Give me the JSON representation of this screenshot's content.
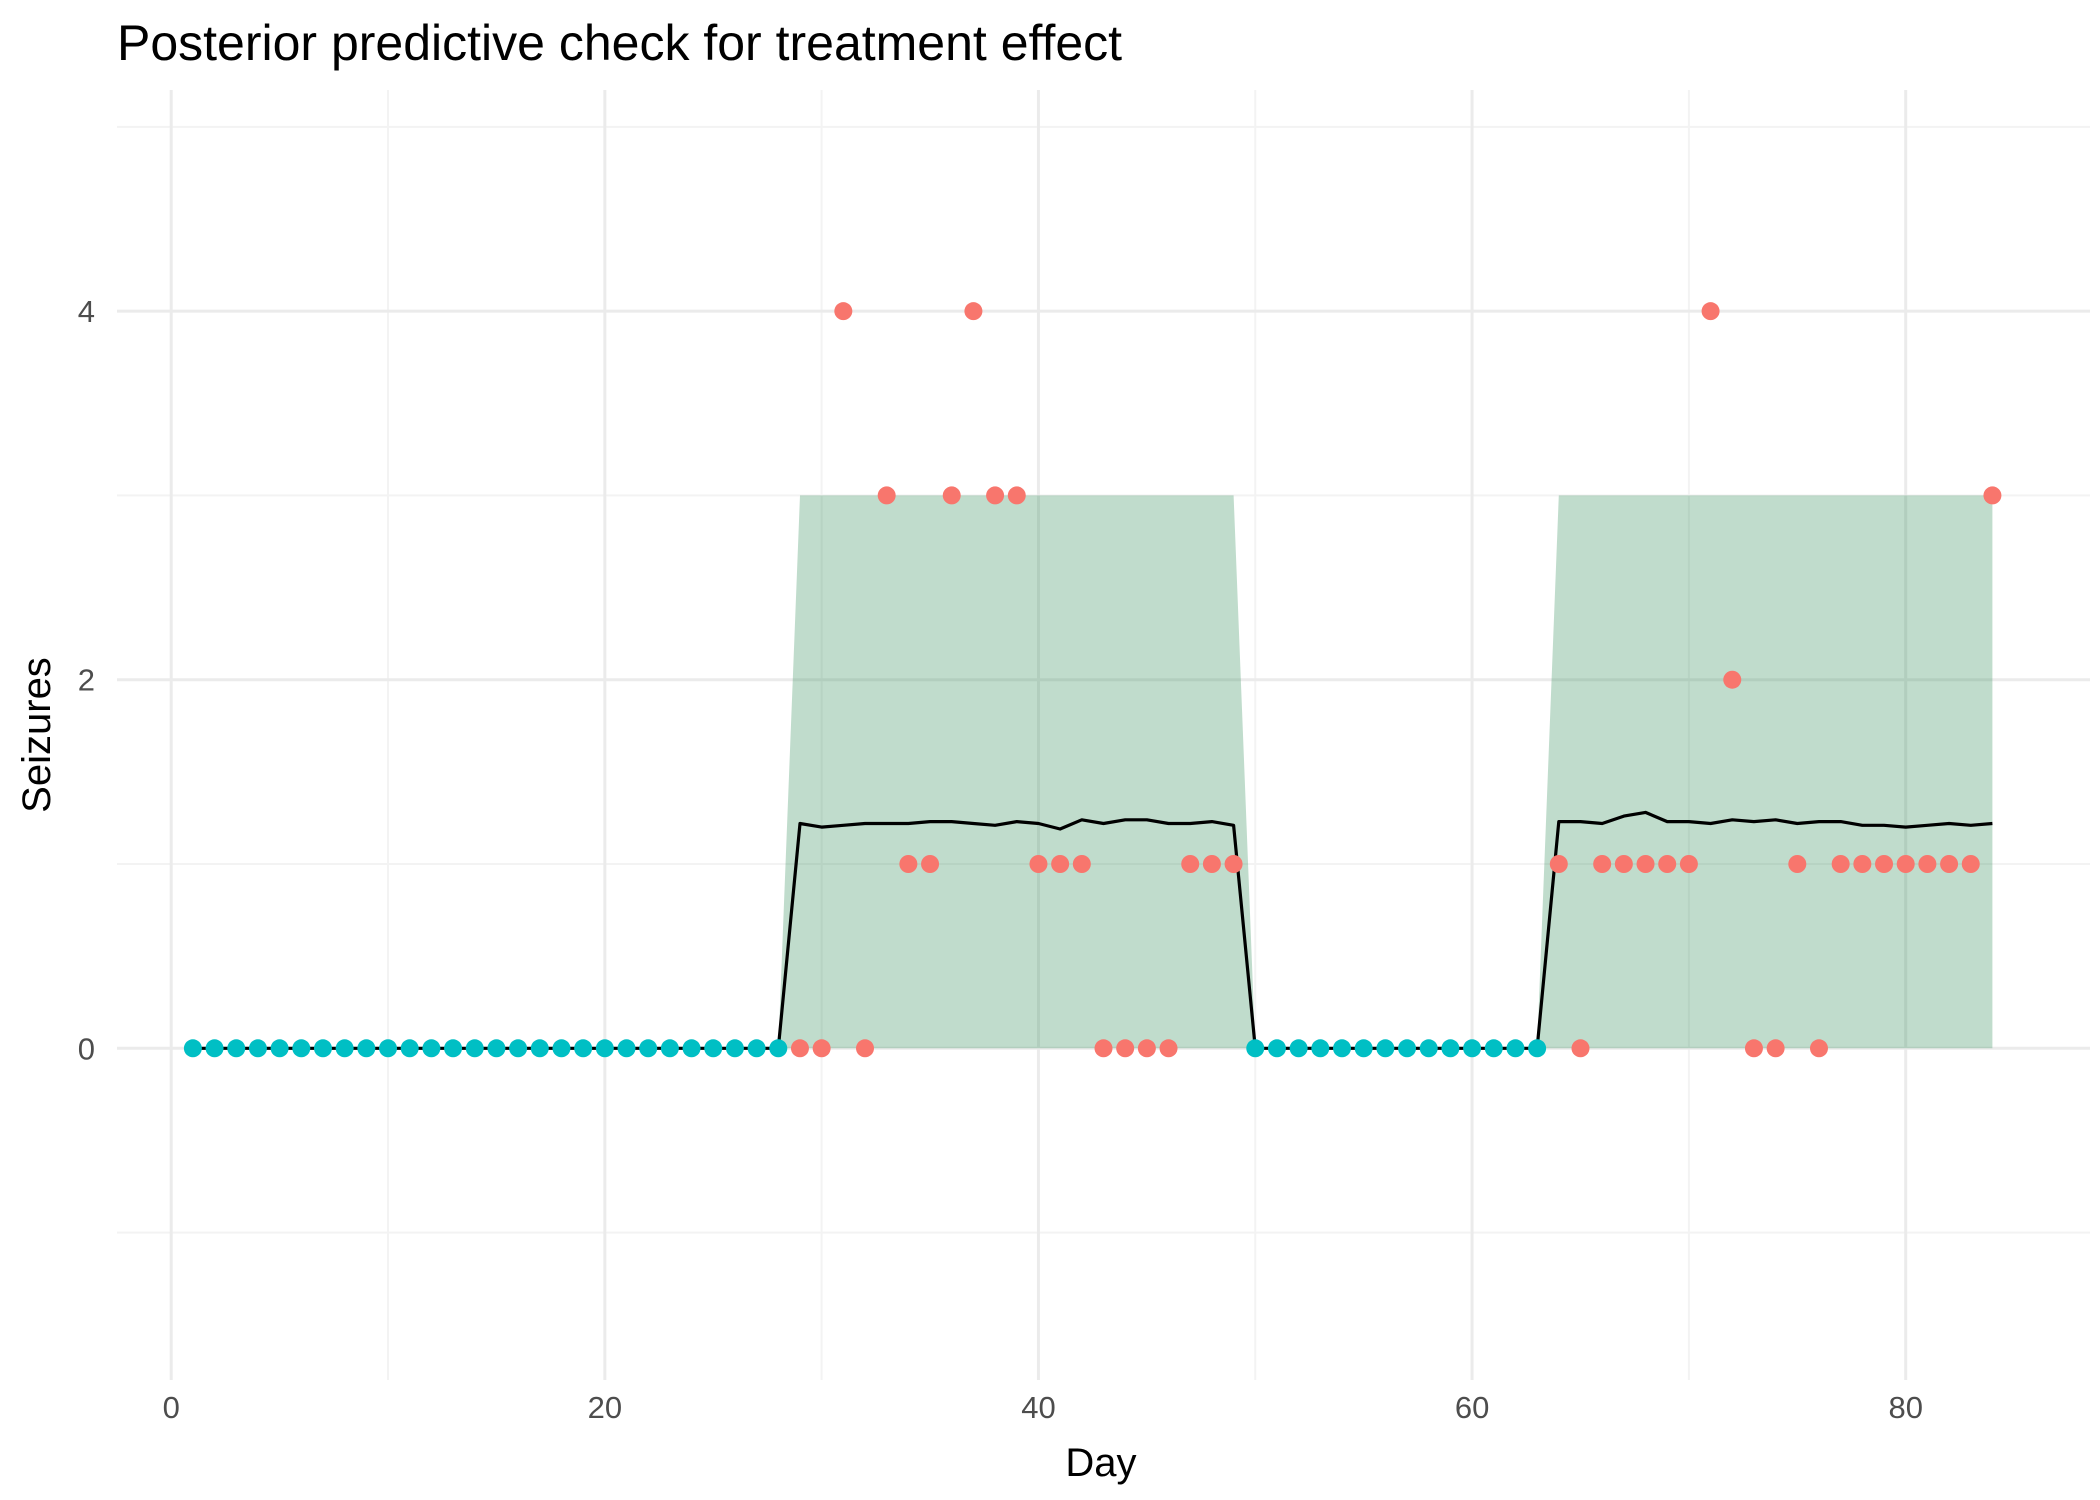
{
  "chart_data": {
    "type": "scatter",
    "title": "Posterior predictive check for treatment effect",
    "xlabel": "Day",
    "ylabel": "Seizures",
    "xlim": [
      -2.5,
      88.5
    ],
    "ylim": [
      -1.8,
      5.2
    ],
    "x_ticks": [
      0,
      20,
      40,
      60,
      80
    ],
    "y_ticks": [
      0,
      2,
      4
    ],
    "x_minor_ticks": [
      10,
      30,
      50,
      70
    ],
    "y_minor_ticks": [
      -1,
      1,
      3,
      5
    ],
    "grid": true,
    "legend": "none",
    "colors": {
      "control_points": "#00bfc4",
      "treatment_points": "#f8766d",
      "band_fill": "#2e8b57",
      "mean_line": "#000000",
      "grid_major": "#ebebeb",
      "grid_minor": "#f3f3f3"
    },
    "series": [
      {
        "name": "observed (control)",
        "kind": "points",
        "x": [
          1,
          2,
          3,
          4,
          5,
          6,
          7,
          8,
          9,
          10,
          11,
          12,
          13,
          14,
          15,
          16,
          17,
          18,
          19,
          20,
          21,
          22,
          23,
          24,
          25,
          26,
          27,
          28,
          50,
          51,
          52,
          53,
          54,
          55,
          56,
          57,
          58,
          59,
          60,
          61,
          62,
          63
        ],
        "y": [
          0,
          0,
          0,
          0,
          0,
          0,
          0,
          0,
          0,
          0,
          0,
          0,
          0,
          0,
          0,
          0,
          0,
          0,
          0,
          0,
          0,
          0,
          0,
          0,
          0,
          0,
          0,
          0,
          0,
          0,
          0,
          0,
          0,
          0,
          0,
          0,
          0,
          0,
          0,
          0,
          0,
          0
        ]
      },
      {
        "name": "observed (treatment)",
        "kind": "points",
        "x": [
          29,
          30,
          31,
          32,
          33,
          34,
          35,
          36,
          37,
          38,
          39,
          40,
          41,
          42,
          43,
          44,
          45,
          46,
          47,
          48,
          49,
          64,
          65,
          66,
          67,
          68,
          69,
          70,
          71,
          72,
          73,
          74,
          75,
          76,
          77,
          78,
          79,
          80,
          81,
          82,
          83,
          84
        ],
        "y": [
          0,
          0,
          4,
          0,
          3,
          1,
          1,
          3,
          4,
          3,
          3,
          1,
          1,
          1,
          0,
          0,
          0,
          0,
          1,
          1,
          1,
          1,
          0,
          1,
          1,
          1,
          1,
          1,
          4,
          2,
          0,
          0,
          1,
          0,
          1,
          1,
          1,
          1,
          1,
          1,
          1,
          3
        ]
      },
      {
        "name": "posterior predictive mean",
        "kind": "line",
        "x": [
          1,
          28,
          29,
          30,
          31,
          32,
          33,
          34,
          35,
          36,
          37,
          38,
          39,
          40,
          41,
          42,
          43,
          44,
          45,
          46,
          47,
          48,
          49,
          50,
          63,
          64,
          65,
          66,
          67,
          68,
          69,
          70,
          71,
          72,
          73,
          74,
          75,
          76,
          77,
          78,
          79,
          80,
          81,
          82,
          83,
          84
        ],
        "y": [
          0,
          0,
          1.22,
          1.2,
          1.21,
          1.22,
          1.22,
          1.22,
          1.23,
          1.23,
          1.22,
          1.21,
          1.23,
          1.22,
          1.19,
          1.24,
          1.22,
          1.24,
          1.24,
          1.22,
          1.22,
          1.23,
          1.21,
          0,
          0,
          1.23,
          1.23,
          1.22,
          1.26,
          1.28,
          1.23,
          1.23,
          1.22,
          1.24,
          1.23,
          1.24,
          1.22,
          1.23,
          1.23,
          1.21,
          1.21,
          1.2,
          1.21,
          1.22,
          1.21,
          1.22
        ]
      },
      {
        "name": "posterior predictive interval",
        "kind": "ribbon",
        "x": [
          1,
          28,
          29,
          49,
          50,
          63,
          64,
          84
        ],
        "ymin": [
          0,
          0,
          0,
          0,
          0,
          0,
          0,
          0
        ],
        "ymax": [
          0,
          0,
          3,
          3,
          0,
          0,
          3,
          3
        ]
      }
    ]
  }
}
